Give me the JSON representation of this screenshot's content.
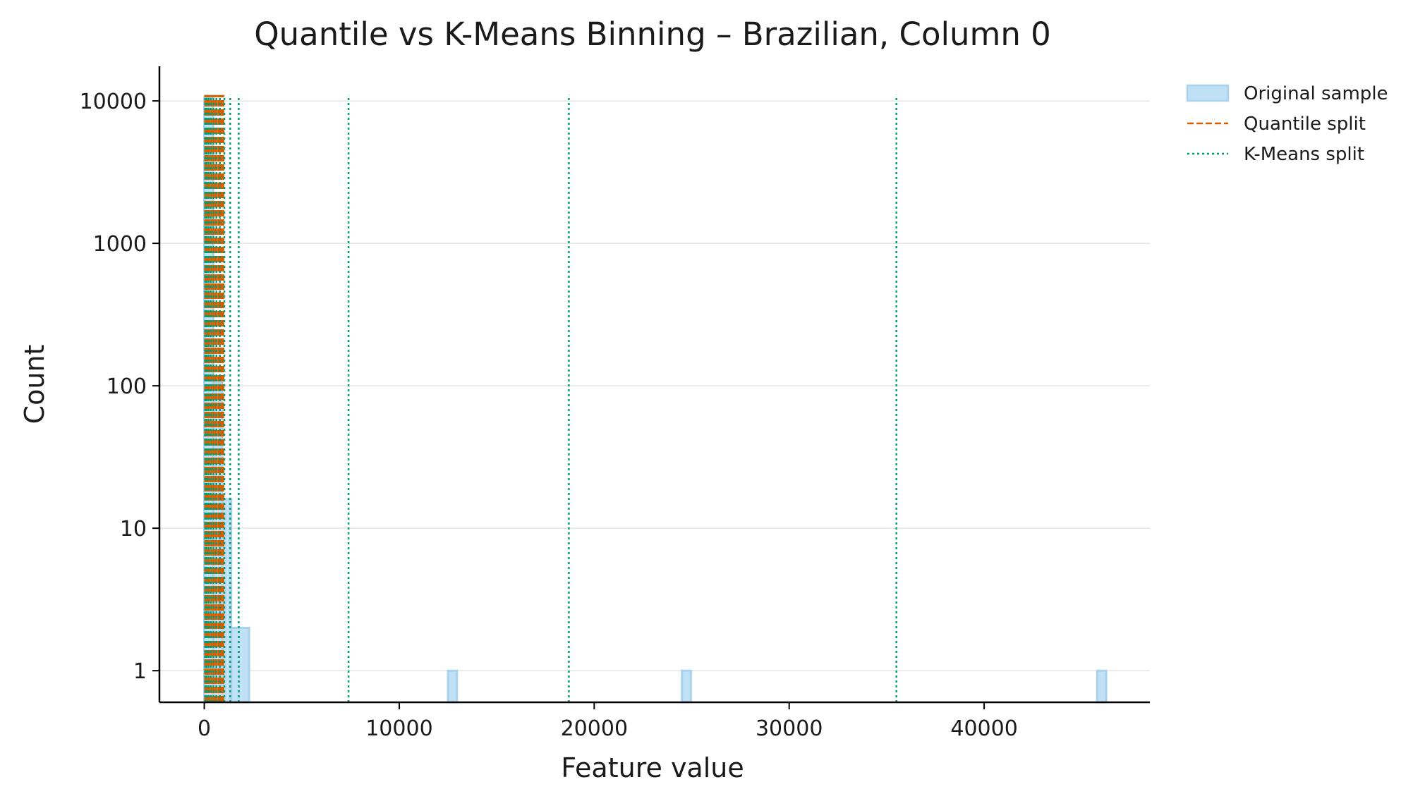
{
  "chart_data": {
    "type": "bar",
    "title": "Quantile vs K-Means Binning – Brazilian, Column 0",
    "xlabel": "Feature value",
    "ylabel": "Count",
    "xlim": [
      -2300,
      48500
    ],
    "ylim": [
      0.6,
      17500
    ],
    "yscale": "log",
    "x_ticks": [
      {
        "value": 0,
        "label": "0"
      },
      {
        "value": 10000,
        "label": "10000"
      },
      {
        "value": 20000,
        "label": "20000"
      },
      {
        "value": 30000,
        "label": "30000"
      },
      {
        "value": 40000,
        "label": "40000"
      }
    ],
    "y_ticks": [
      {
        "value": 1,
        "label": "1"
      },
      {
        "value": 10,
        "label": "10"
      },
      {
        "value": 100,
        "label": "100"
      },
      {
        "value": 1000,
        "label": "1000"
      },
      {
        "value": 10000,
        "label": "10000"
      }
    ],
    "grid": "y",
    "legend_position": "outside-top-right",
    "histogram": {
      "name": "Original sample",
      "color": "#bfe0f5",
      "edge_color": "#a9d2ee",
      "bins": [
        {
          "x0": 0,
          "x1": 460,
          "count": 10500
        },
        {
          "x0": 460,
          "x1": 920,
          "count": 105
        },
        {
          "x0": 920,
          "x1": 1380,
          "count": 16
        },
        {
          "x0": 1380,
          "x1": 2300,
          "count": 2
        },
        {
          "x0": 12500,
          "x1": 12960,
          "count": 1
        },
        {
          "x0": 24500,
          "x1": 24960,
          "count": 1
        },
        {
          "x0": 45800,
          "x1": 46260,
          "count": 1
        }
      ]
    },
    "quantile_split": {
      "name": "Quantile split",
      "color": "#d55e00",
      "x": [
        40,
        120,
        200,
        290,
        380,
        470,
        560,
        650,
        740,
        820,
        900,
        980
      ]
    },
    "kmeans_split": {
      "name": "K-Means split",
      "color": "#009e73",
      "x": [
        40,
        130,
        230,
        340,
        470,
        620,
        800,
        1030,
        1330,
        1770,
        7400,
        18700,
        35500
      ]
    },
    "line_top": 11000,
    "legend": [
      {
        "name": "Original sample",
        "kind": "patch",
        "color": "#bfe0f5",
        "edge_color": "#a9d2ee"
      },
      {
        "name": "Quantile split",
        "kind": "dashed",
        "color": "#d55e00"
      },
      {
        "name": "K-Means split",
        "kind": "dotted",
        "color": "#009e73"
      }
    ]
  }
}
